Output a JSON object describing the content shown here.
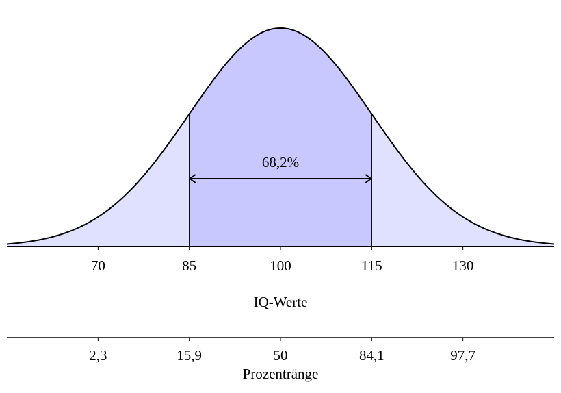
{
  "chart_data": {
    "type": "normal",
    "mean": 100,
    "sd": 15,
    "xlim": [
      55,
      145
    ],
    "xticks": [
      70,
      85,
      100,
      115,
      130
    ],
    "xlabel": "IQ-Werte",
    "band": [
      85,
      115
    ],
    "band_label": "68,2%",
    "fill_color": "#e0e0ff",
    "band_color": "#c8c8ff",
    "line_color": "#000000",
    "second_axis": {
      "ticks": [
        {
          "value": 2.3,
          "label": "2,3"
        },
        {
          "value": 15.9,
          "label": "15,9"
        },
        50,
        {
          "value": 84.1,
          "label": "84,1"
        },
        {
          "value": 97.7,
          "label": "97,7"
        }
      ],
      "label": "Prozentränge"
    }
  }
}
